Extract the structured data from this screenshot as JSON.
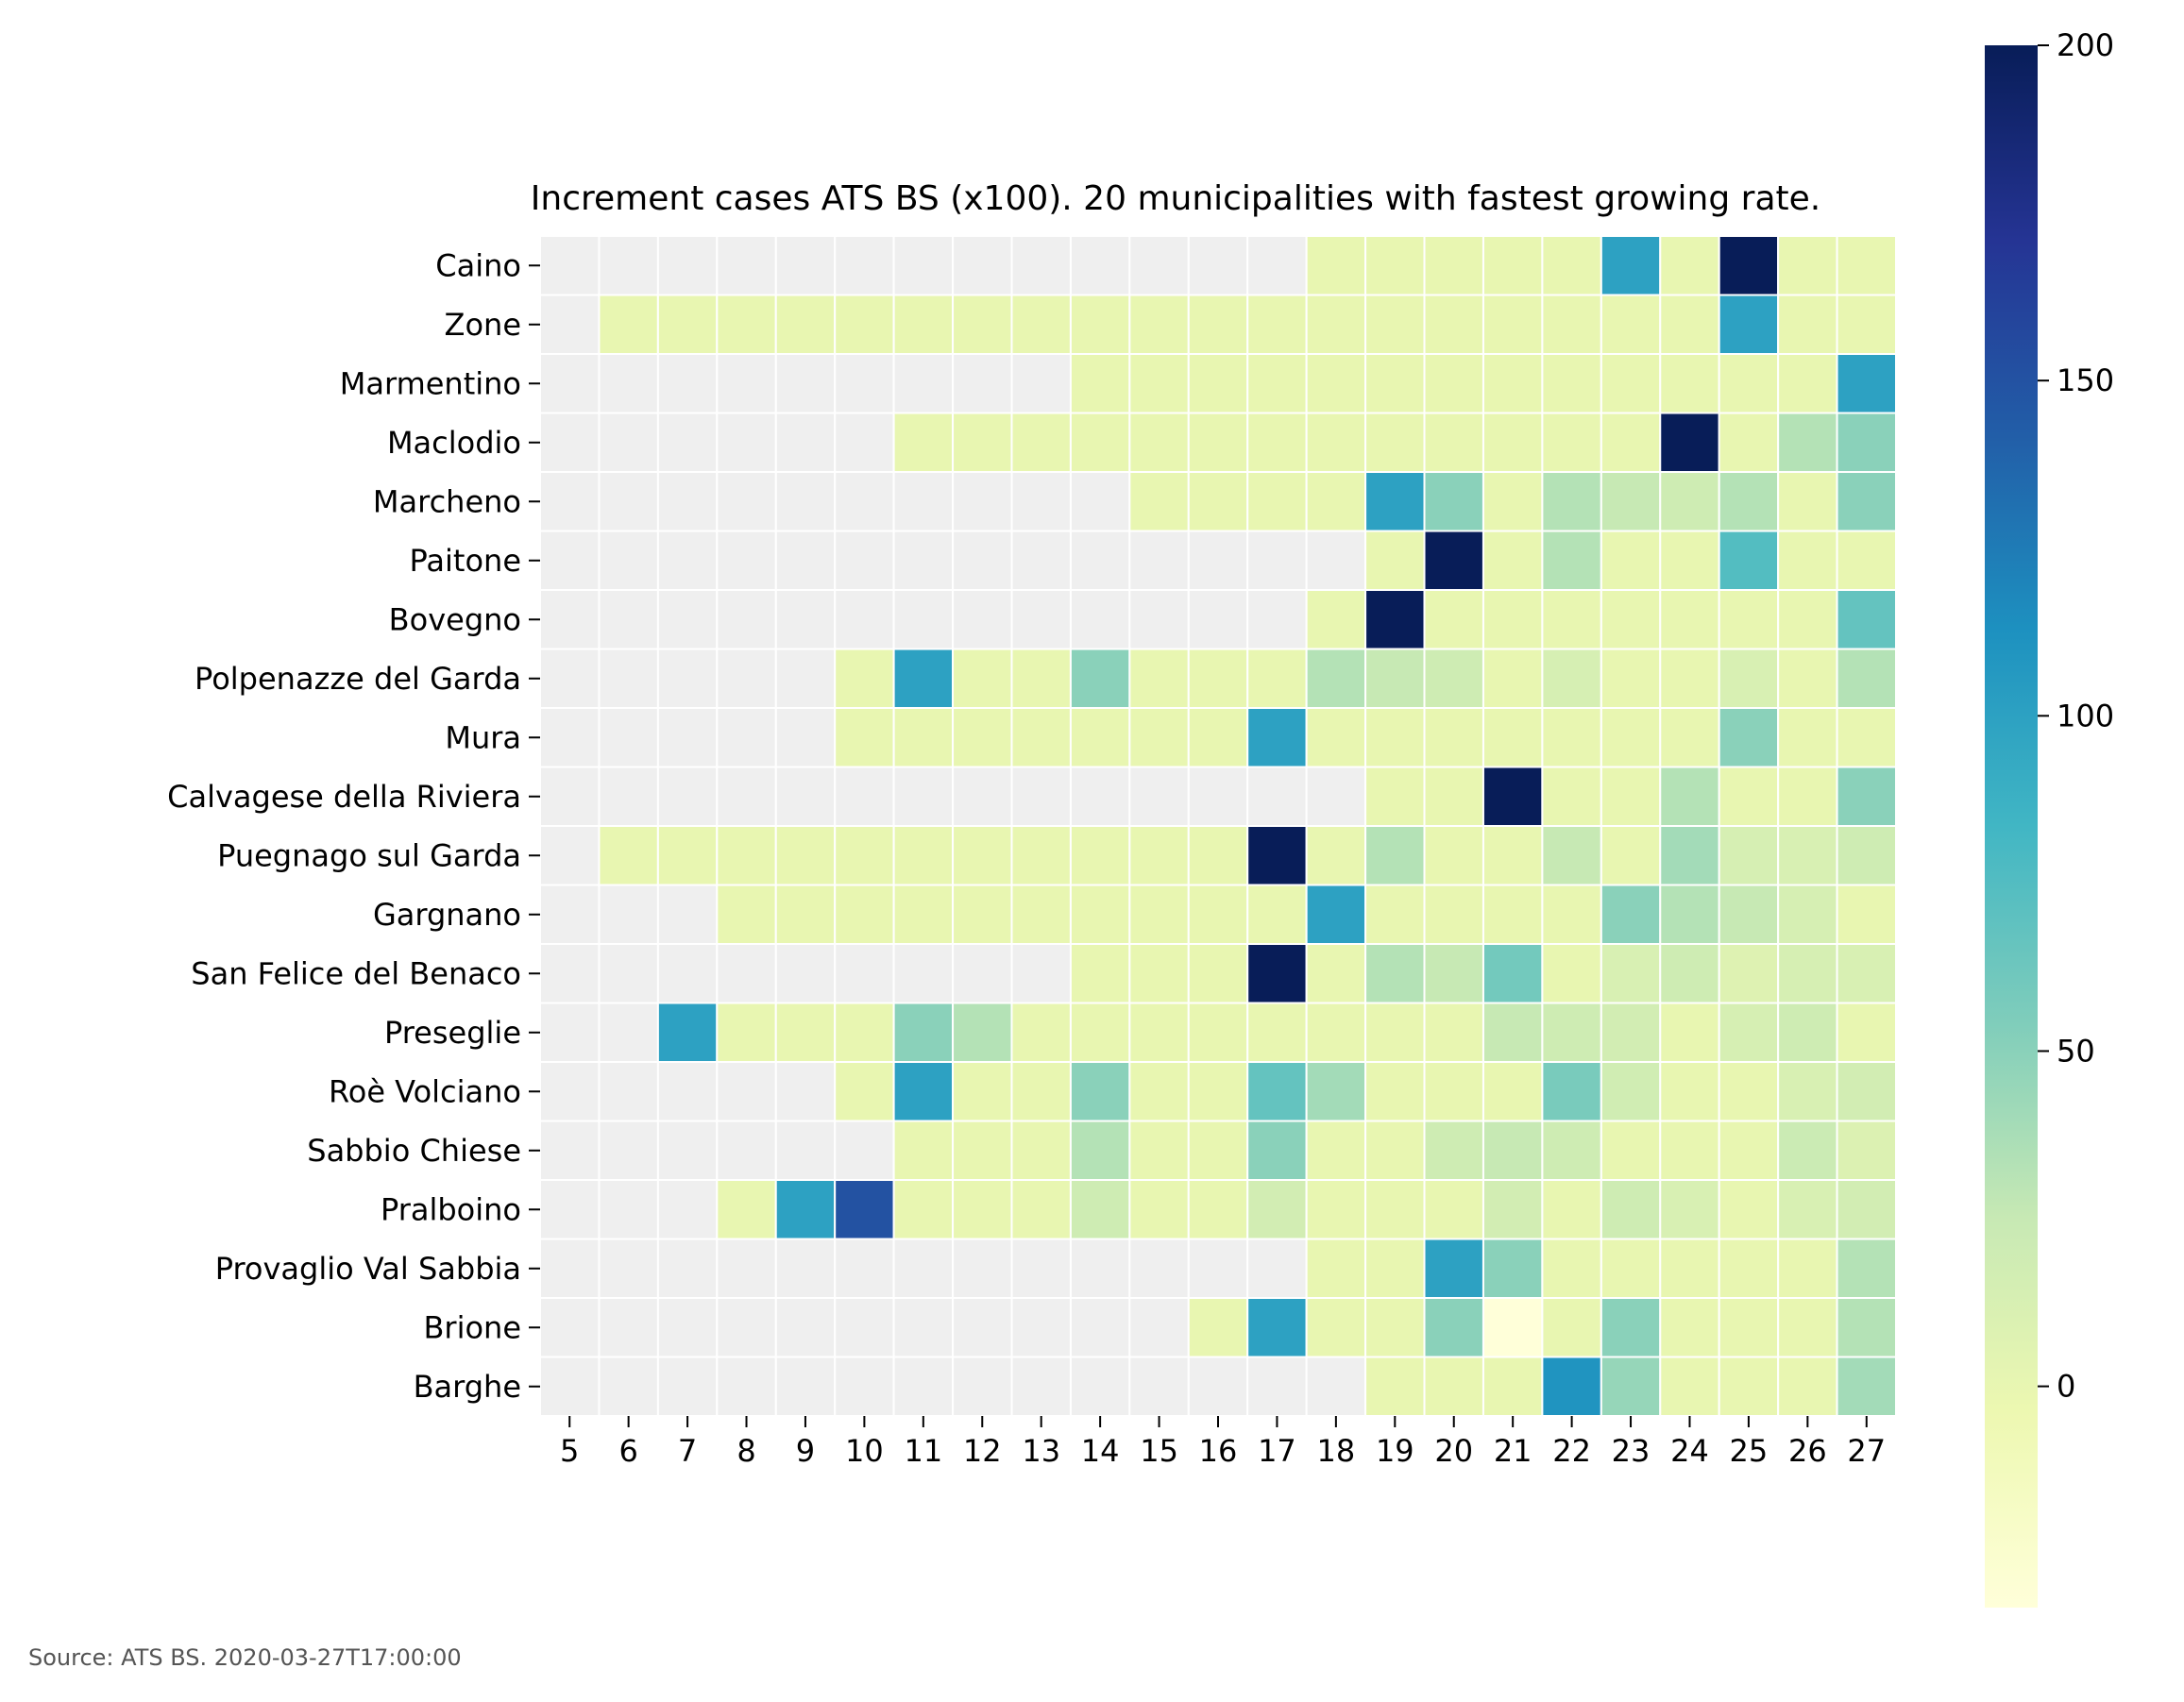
{
  "chart_data": {
    "type": "heatmap",
    "title": "Increment cases ATS BS (x100). 20 municipalities with fastest growing rate.",
    "xlabel": "",
    "ylabel": "",
    "x": [
      5,
      6,
      7,
      8,
      9,
      10,
      11,
      12,
      13,
      14,
      15,
      16,
      17,
      18,
      19,
      20,
      21,
      22,
      23,
      24,
      25,
      26,
      27
    ],
    "y": [
      "Caino",
      "Zone",
      "Marmentino",
      "Maclodio",
      "Marcheno",
      "Paitone",
      "Bovegno",
      "Polpenazze del Garda",
      "Mura",
      "Calvagese della Riviera",
      "Puegnago sul Garda",
      "Gargnano",
      "San Felice del Benaco",
      "Preseglie",
      "Roè Volciano",
      "Sabbio Chiese",
      "Pralboino",
      "Provaglio Val Sabbia",
      "Brione",
      "Barghe"
    ],
    "values": [
      [
        null,
        null,
        null,
        null,
        null,
        null,
        null,
        null,
        null,
        null,
        null,
        null,
        null,
        0,
        0,
        0,
        0,
        0,
        100,
        0,
        200,
        0,
        0
      ],
      [
        null,
        0,
        0,
        0,
        0,
        0,
        0,
        0,
        0,
        0,
        0,
        0,
        0,
        0,
        0,
        0,
        0,
        0,
        0,
        0,
        100,
        0,
        0
      ],
      [
        null,
        null,
        null,
        null,
        null,
        null,
        null,
        null,
        null,
        0,
        0,
        0,
        0,
        0,
        0,
        0,
        0,
        0,
        0,
        0,
        0,
        0,
        100
      ],
      [
        null,
        null,
        null,
        null,
        null,
        null,
        0,
        0,
        0,
        0,
        0,
        0,
        0,
        0,
        0,
        0,
        0,
        0,
        0,
        200,
        0,
        33,
        50
      ],
      [
        null,
        null,
        null,
        null,
        null,
        null,
        null,
        null,
        null,
        null,
        0,
        0,
        0,
        0,
        100,
        50,
        0,
        33,
        25,
        20,
        33,
        0,
        50
      ],
      [
        null,
        null,
        null,
        null,
        null,
        null,
        null,
        null,
        null,
        null,
        null,
        null,
        null,
        null,
        0,
        200,
        0,
        33,
        0,
        0,
        75,
        0,
        0
      ],
      [
        null,
        null,
        null,
        null,
        null,
        null,
        null,
        null,
        null,
        null,
        null,
        null,
        null,
        0,
        200,
        0,
        0,
        0,
        0,
        0,
        0,
        0,
        67
      ],
      [
        null,
        null,
        null,
        null,
        null,
        0,
        100,
        0,
        0,
        50,
        0,
        0,
        0,
        33,
        25,
        20,
        0,
        14,
        0,
        0,
        12,
        0,
        33
      ],
      [
        null,
        null,
        null,
        null,
        null,
        0,
        0,
        0,
        0,
        0,
        0,
        0,
        100,
        0,
        0,
        0,
        0,
        0,
        0,
        0,
        50,
        0,
        0
      ],
      [
        null,
        null,
        null,
        null,
        null,
        null,
        null,
        null,
        null,
        null,
        null,
        null,
        null,
        null,
        0,
        0,
        200,
        0,
        0,
        33,
        0,
        0,
        50
      ],
      [
        null,
        0,
        0,
        0,
        0,
        0,
        0,
        0,
        0,
        0,
        0,
        0,
        200,
        0,
        33,
        0,
        0,
        25,
        0,
        40,
        14,
        12,
        20
      ],
      [
        null,
        null,
        null,
        0,
        0,
        0,
        0,
        0,
        0,
        0,
        0,
        0,
        0,
        100,
        0,
        0,
        0,
        0,
        50,
        33,
        25,
        14,
        0
      ],
      [
        null,
        null,
        null,
        null,
        null,
        null,
        null,
        null,
        null,
        0,
        0,
        0,
        200,
        0,
        33,
        25,
        60,
        0,
        12,
        20,
        8,
        14,
        12
      ],
      [
        null,
        null,
        100,
        0,
        0,
        0,
        50,
        33,
        0,
        0,
        0,
        0,
        0,
        0,
        0,
        0,
        25,
        20,
        17,
        0,
        14,
        20,
        0
      ],
      [
        null,
        null,
        null,
        null,
        null,
        0,
        100,
        0,
        0,
        50,
        0,
        0,
        67,
        40,
        0,
        0,
        0,
        57,
        18,
        0,
        0,
        12,
        17
      ],
      [
        null,
        null,
        null,
        null,
        null,
        null,
        0,
        0,
        0,
        33,
        0,
        0,
        50,
        0,
        0,
        20,
        25,
        20,
        0,
        0,
        0,
        22,
        9
      ],
      [
        null,
        null,
        null,
        0,
        100,
        150,
        0,
        0,
        0,
        20,
        0,
        0,
        17,
        0,
        0,
        0,
        17,
        0,
        20,
        12,
        0,
        12,
        17
      ],
      [
        null,
        null,
        null,
        null,
        null,
        null,
        null,
        null,
        null,
        null,
        null,
        null,
        null,
        0,
        0,
        100,
        50,
        0,
        0,
        0,
        0,
        0,
        33
      ],
      [
        null,
        null,
        null,
        null,
        null,
        null,
        null,
        null,
        null,
        null,
        null,
        0,
        100,
        0,
        0,
        50,
        -33,
        0,
        50,
        0,
        0,
        0,
        33
      ],
      [
        null,
        null,
        null,
        null,
        null,
        null,
        null,
        null,
        null,
        null,
        null,
        null,
        null,
        null,
        0,
        0,
        0,
        110,
        45,
        0,
        0,
        0,
        40
      ]
    ],
    "missing_color": "#efefef",
    "colormap": "YlGnBu",
    "colorbar": {
      "vmin": -33,
      "vmax": 200,
      "ticks": [
        0,
        50,
        100,
        150,
        200
      ]
    }
  },
  "source_note": "Source: ATS BS. 2020-03-27T17:00:00"
}
